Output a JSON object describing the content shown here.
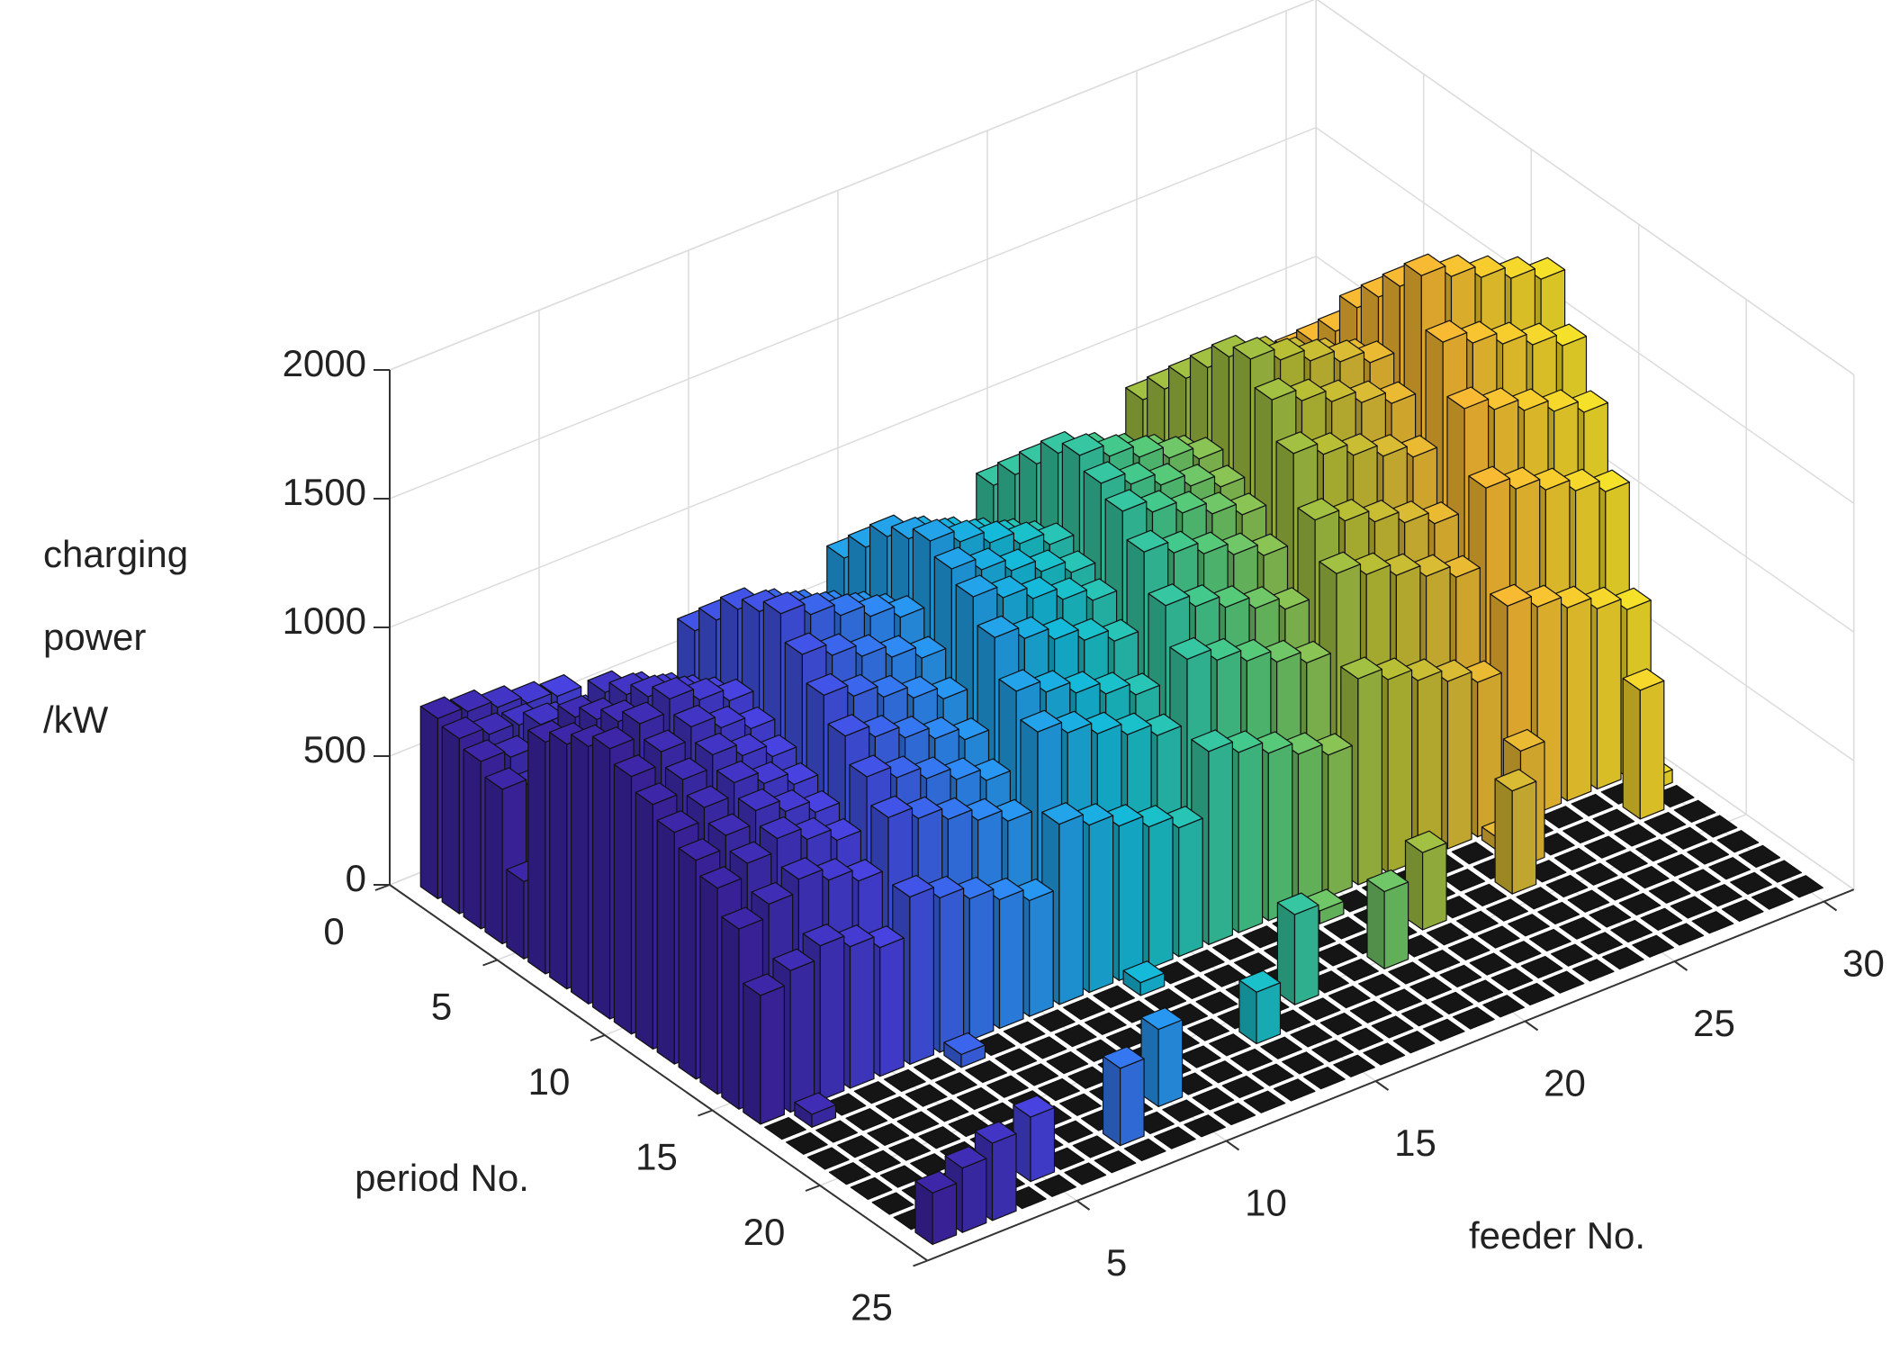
{
  "chart_data": {
    "type": "bar3d",
    "xlabel": "feeder No.",
    "ylabel": "period No.",
    "zlabel": [
      "charging",
      "power",
      "/kW"
    ],
    "xlim": [
      0,
      31
    ],
    "xticks": [
      5,
      10,
      15,
      20,
      25,
      30
    ],
    "ylim": [
      0,
      25
    ],
    "yticks": [
      0,
      5,
      10,
      15,
      20,
      25
    ],
    "zlim": [
      0,
      2000
    ],
    "zticks": [
      0,
      500,
      1000,
      1500,
      2000
    ],
    "grid": true,
    "colormap": [
      "#3e26a8",
      "#4743e2",
      "#2d8ff8",
      "#12bfd7",
      "#4ccb81",
      "#b4bf35",
      "#f9b933",
      "#f5e02a"
    ],
    "values": [
      [
        700,
        680,
        650,
        620,
        600,
        0,
        0,
        0,
        0,
        0,
        0,
        0,
        0,
        0,
        0,
        0,
        0,
        0,
        0,
        0,
        0,
        0,
        0,
        0,
        0,
        0,
        0,
        0,
        0,
        0
      ],
      [
        680,
        650,
        640,
        600,
        580,
        0,
        0,
        0,
        0,
        0,
        0,
        0,
        0,
        0,
        0,
        0,
        0,
        0,
        0,
        0,
        0,
        0,
        0,
        0,
        0,
        0,
        0,
        0,
        0,
        0
      ],
      [
        650,
        620,
        700,
        560,
        550,
        0,
        0,
        0,
        0,
        0,
        0,
        0,
        0,
        0,
        0,
        0,
        0,
        0,
        0,
        0,
        0,
        0,
        0,
        0,
        0,
        0,
        0,
        0,
        0,
        0
      ],
      [
        600,
        560,
        620,
        500,
        480,
        0,
        0,
        0,
        0,
        0,
        0,
        0,
        0,
        0,
        0,
        0,
        0,
        0,
        0,
        0,
        0,
        0,
        0,
        0,
        0,
        0,
        0,
        0,
        0,
        0
      ],
      [
        300,
        200,
        250,
        150,
        100,
        0,
        0,
        0,
        0,
        0,
        0,
        0,
        0,
        0,
        0,
        0,
        0,
        0,
        0,
        0,
        0,
        0,
        0,
        0,
        0,
        0,
        0,
        0,
        0,
        0
      ],
      [
        900,
        950,
        1000,
        950,
        900,
        1100,
        1050,
        1000,
        950,
        900,
        1150,
        1100,
        1050,
        1000,
        950,
        1200,
        1150,
        1100,
        1050,
        1000,
        1300,
        1250,
        1200,
        1150,
        1100,
        1250,
        1200,
        1150,
        1100,
        1050
      ],
      [
        950,
        1000,
        1050,
        1000,
        950,
        1200,
        1150,
        1100,
        1050,
        1000,
        1250,
        1200,
        1150,
        1100,
        1050,
        1300,
        1250,
        1200,
        1150,
        1100,
        1400,
        1350,
        1300,
        1250,
        1200,
        1350,
        1300,
        1250,
        1200,
        1150
      ],
      [
        1000,
        1050,
        1100,
        1050,
        1000,
        1300,
        1250,
        1200,
        1150,
        1100,
        1350,
        1300,
        1250,
        1200,
        1150,
        1400,
        1350,
        1300,
        1250,
        1200,
        1500,
        1450,
        1400,
        1350,
        1300,
        1450,
        1400,
        1350,
        1300,
        1250
      ],
      [
        1050,
        1100,
        1150,
        1100,
        1050,
        1350,
        1300,
        1250,
        1200,
        1150,
        1400,
        1350,
        1300,
        1250,
        1200,
        1500,
        1450,
        1400,
        1350,
        1300,
        1600,
        1550,
        1500,
        1450,
        1400,
        1600,
        1550,
        1500,
        1450,
        1400
      ],
      [
        1000,
        1050,
        1100,
        1050,
        1000,
        1400,
        1350,
        1300,
        1250,
        1200,
        1450,
        1400,
        1350,
        1300,
        1250,
        1550,
        1500,
        1450,
        1400,
        1350,
        1700,
        1650,
        1600,
        1550,
        1500,
        1700,
        1650,
        1600,
        1550,
        1500
      ],
      [
        950,
        1000,
        1050,
        1000,
        950,
        1300,
        1250,
        1200,
        1150,
        1100,
        1400,
        1350,
        1300,
        1250,
        1200,
        1500,
        1450,
        1400,
        1350,
        1300,
        1750,
        1700,
        1650,
        1600,
        1550,
        1800,
        1750,
        1700,
        1650,
        1600
      ],
      [
        900,
        950,
        1000,
        950,
        900,
        1200,
        1150,
        1100,
        1050,
        1000,
        1350,
        1300,
        1250,
        1200,
        1150,
        1450,
        1400,
        1350,
        1300,
        1250,
        1650,
        1600,
        1550,
        1500,
        1450,
        1900,
        1850,
        1800,
        1750,
        1700
      ],
      [
        850,
        900,
        950,
        900,
        850,
        1100,
        1050,
        1000,
        950,
        900,
        1250,
        1200,
        1150,
        1100,
        1050,
        1350,
        1300,
        1250,
        1200,
        1150,
        1500,
        1450,
        1400,
        1350,
        1300,
        1700,
        1650,
        1600,
        1550,
        1500
      ],
      [
        800,
        850,
        900,
        850,
        800,
        1000,
        950,
        900,
        850,
        800,
        1100,
        1050,
        1000,
        950,
        900,
        1200,
        1150,
        1100,
        1050,
        1000,
        1300,
        1250,
        1200,
        1150,
        1100,
        1500,
        1450,
        1400,
        1350,
        1300
      ],
      [
        700,
        750,
        800,
        750,
        700,
        900,
        850,
        800,
        750,
        700,
        1000,
        950,
        900,
        850,
        800,
        1050,
        1000,
        950,
        900,
        850,
        1150,
        1100,
        1050,
        1000,
        950,
        1250,
        1200,
        1150,
        1100,
        1050
      ],
      [
        500,
        550,
        600,
        550,
        500,
        650,
        600,
        550,
        500,
        450,
        700,
        650,
        600,
        550,
        500,
        750,
        700,
        650,
        600,
        550,
        800,
        750,
        700,
        650,
        600,
        850,
        800,
        750,
        700,
        650
      ],
      [
        0,
        50,
        0,
        0,
        0,
        0,
        50,
        0,
        0,
        0,
        0,
        0,
        50,
        0,
        0,
        0,
        0,
        0,
        50,
        0,
        0,
        0,
        0,
        0,
        50,
        0,
        0,
        0,
        0,
        50
      ],
      [
        0,
        0,
        0,
        0,
        0,
        0,
        0,
        0,
        0,
        0,
        0,
        0,
        0,
        0,
        0,
        0,
        0,
        0,
        0,
        0,
        0,
        0,
        0,
        0,
        450,
        0,
        0,
        0,
        500,
        0
      ],
      [
        0,
        0,
        0,
        0,
        0,
        0,
        0,
        0,
        0,
        0,
        0,
        0,
        0,
        0,
        0,
        0,
        0,
        0,
        0,
        0,
        300,
        0,
        0,
        400,
        0,
        0,
        0,
        0,
        0,
        0
      ],
      [
        0,
        0,
        0,
        0,
        0,
        0,
        0,
        0,
        0,
        0,
        0,
        0,
        0,
        0,
        0,
        350,
        0,
        0,
        300,
        0,
        0,
        0,
        0,
        0,
        0,
        0,
        0,
        0,
        0,
        0
      ],
      [
        0,
        0,
        0,
        0,
        0,
        0,
        0,
        0,
        0,
        0,
        0,
        0,
        0,
        200,
        0,
        0,
        0,
        0,
        0,
        0,
        0,
        0,
        0,
        0,
        0,
        0,
        0,
        0,
        0,
        0
      ],
      [
        0,
        0,
        0,
        0,
        0,
        0,
        0,
        0,
        0,
        300,
        0,
        0,
        0,
        0,
        0,
        0,
        0,
        0,
        0,
        0,
        0,
        0,
        0,
        0,
        0,
        0,
        0,
        0,
        0,
        0
      ],
      [
        0,
        0,
        0,
        0,
        250,
        0,
        0,
        300,
        0,
        0,
        0,
        0,
        0,
        0,
        0,
        0,
        0,
        0,
        0,
        0,
        0,
        0,
        0,
        0,
        0,
        0,
        0,
        0,
        0,
        0
      ],
      [
        200,
        250,
        300,
        0,
        0,
        0,
        0,
        0,
        0,
        0,
        0,
        0,
        0,
        0,
        0,
        0,
        0,
        0,
        0,
        0,
        0,
        0,
        0,
        0,
        0,
        0,
        0,
        0,
        0,
        0
      ]
    ]
  }
}
